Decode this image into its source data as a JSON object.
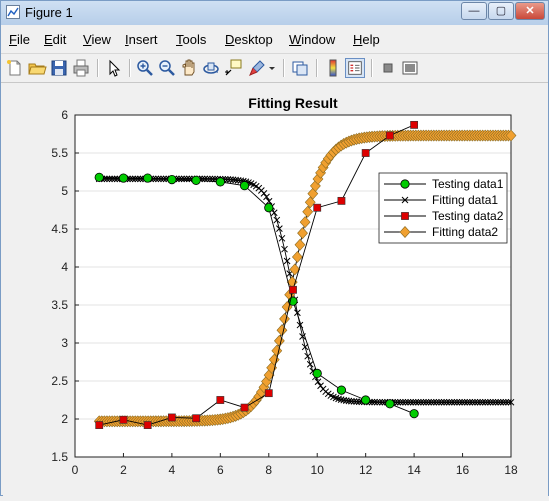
{
  "window": {
    "title": "Figure 1",
    "controls": {
      "minimize": "—",
      "maximize": "▢",
      "close": "✕"
    }
  },
  "menu": {
    "items": [
      {
        "label": "File",
        "u": "F",
        "rest": "ile"
      },
      {
        "label": "Edit",
        "u": "E",
        "rest": "dit"
      },
      {
        "label": "View",
        "u": "V",
        "rest": "iew"
      },
      {
        "label": "Insert",
        "u": "I",
        "rest": "nsert"
      },
      {
        "label": "Tools",
        "u": "T",
        "rest": "ools"
      },
      {
        "label": "Desktop",
        "u": "D",
        "rest": "esktop"
      },
      {
        "label": "Window",
        "u": "W",
        "rest": "indow"
      },
      {
        "label": "Help",
        "u": "H",
        "rest": "elp"
      }
    ]
  },
  "toolbar": {
    "icons": [
      "new-figure-icon",
      "open-file-icon",
      "save-icon",
      "print-icon",
      "pointer-icon",
      "zoom-in-icon",
      "zoom-out-icon",
      "pan-icon",
      "rotate-3d-icon",
      "data-cursor-icon",
      "brush-icon",
      "link-plot-icon",
      "colorbar-icon",
      "legend-icon",
      "hide-plot-tools-icon",
      "show-plot-tools-icon"
    ]
  },
  "chart_data": {
    "type": "line",
    "title": "Fitting Result",
    "xlabel": "",
    "ylabel": "",
    "xlim": [
      0,
      18
    ],
    "ylim": [
      1.5,
      6
    ],
    "xticks": [
      "0",
      "2",
      "4",
      "6",
      "8",
      "10",
      "12",
      "14",
      "16",
      "18"
    ],
    "yticks": [
      "1.5",
      "2",
      "2.5",
      "3",
      "3.5",
      "4",
      "4.5",
      "5",
      "5.5",
      "6"
    ],
    "grid": "horizontal",
    "legend_position": "right",
    "series": [
      {
        "name": "Testing data1",
        "style": "green-circle-line",
        "color": "#00cc00",
        "x": [
          1,
          2,
          3,
          4,
          5,
          6,
          7,
          8,
          9,
          10,
          11,
          12,
          13,
          14
        ],
        "y": [
          5.18,
          5.17,
          5.17,
          5.15,
          5.14,
          5.12,
          5.07,
          4.78,
          3.55,
          2.6,
          2.38,
          2.25,
          2.2,
          2.07
        ]
      },
      {
        "name": "Fitting data1",
        "style": "black-x-line",
        "color": "#000000",
        "sigmoid": {
          "low": 2.22,
          "high": 5.16,
          "center": 9.0,
          "scale": 0.45,
          "decreasing": true
        },
        "x_range": [
          1,
          18
        ]
      },
      {
        "name": "Testing data2",
        "style": "red-square-line",
        "color": "#dd0000",
        "x": [
          1,
          2,
          3,
          4,
          5,
          6,
          7,
          8,
          9,
          10,
          11,
          12,
          13,
          14
        ],
        "y": [
          1.92,
          1.99,
          1.92,
          2.02,
          2.01,
          2.25,
          2.15,
          2.34,
          3.7,
          4.78,
          4.87,
          5.5,
          5.73,
          5.87
        ]
      },
      {
        "name": "Fitting data2",
        "style": "orange-diamond-line",
        "color": "#f0a030",
        "sigmoid": {
          "low": 1.97,
          "high": 5.73,
          "center": 9.0,
          "scale": 0.6,
          "decreasing": false
        },
        "x_range": [
          1,
          18
        ]
      }
    ]
  }
}
